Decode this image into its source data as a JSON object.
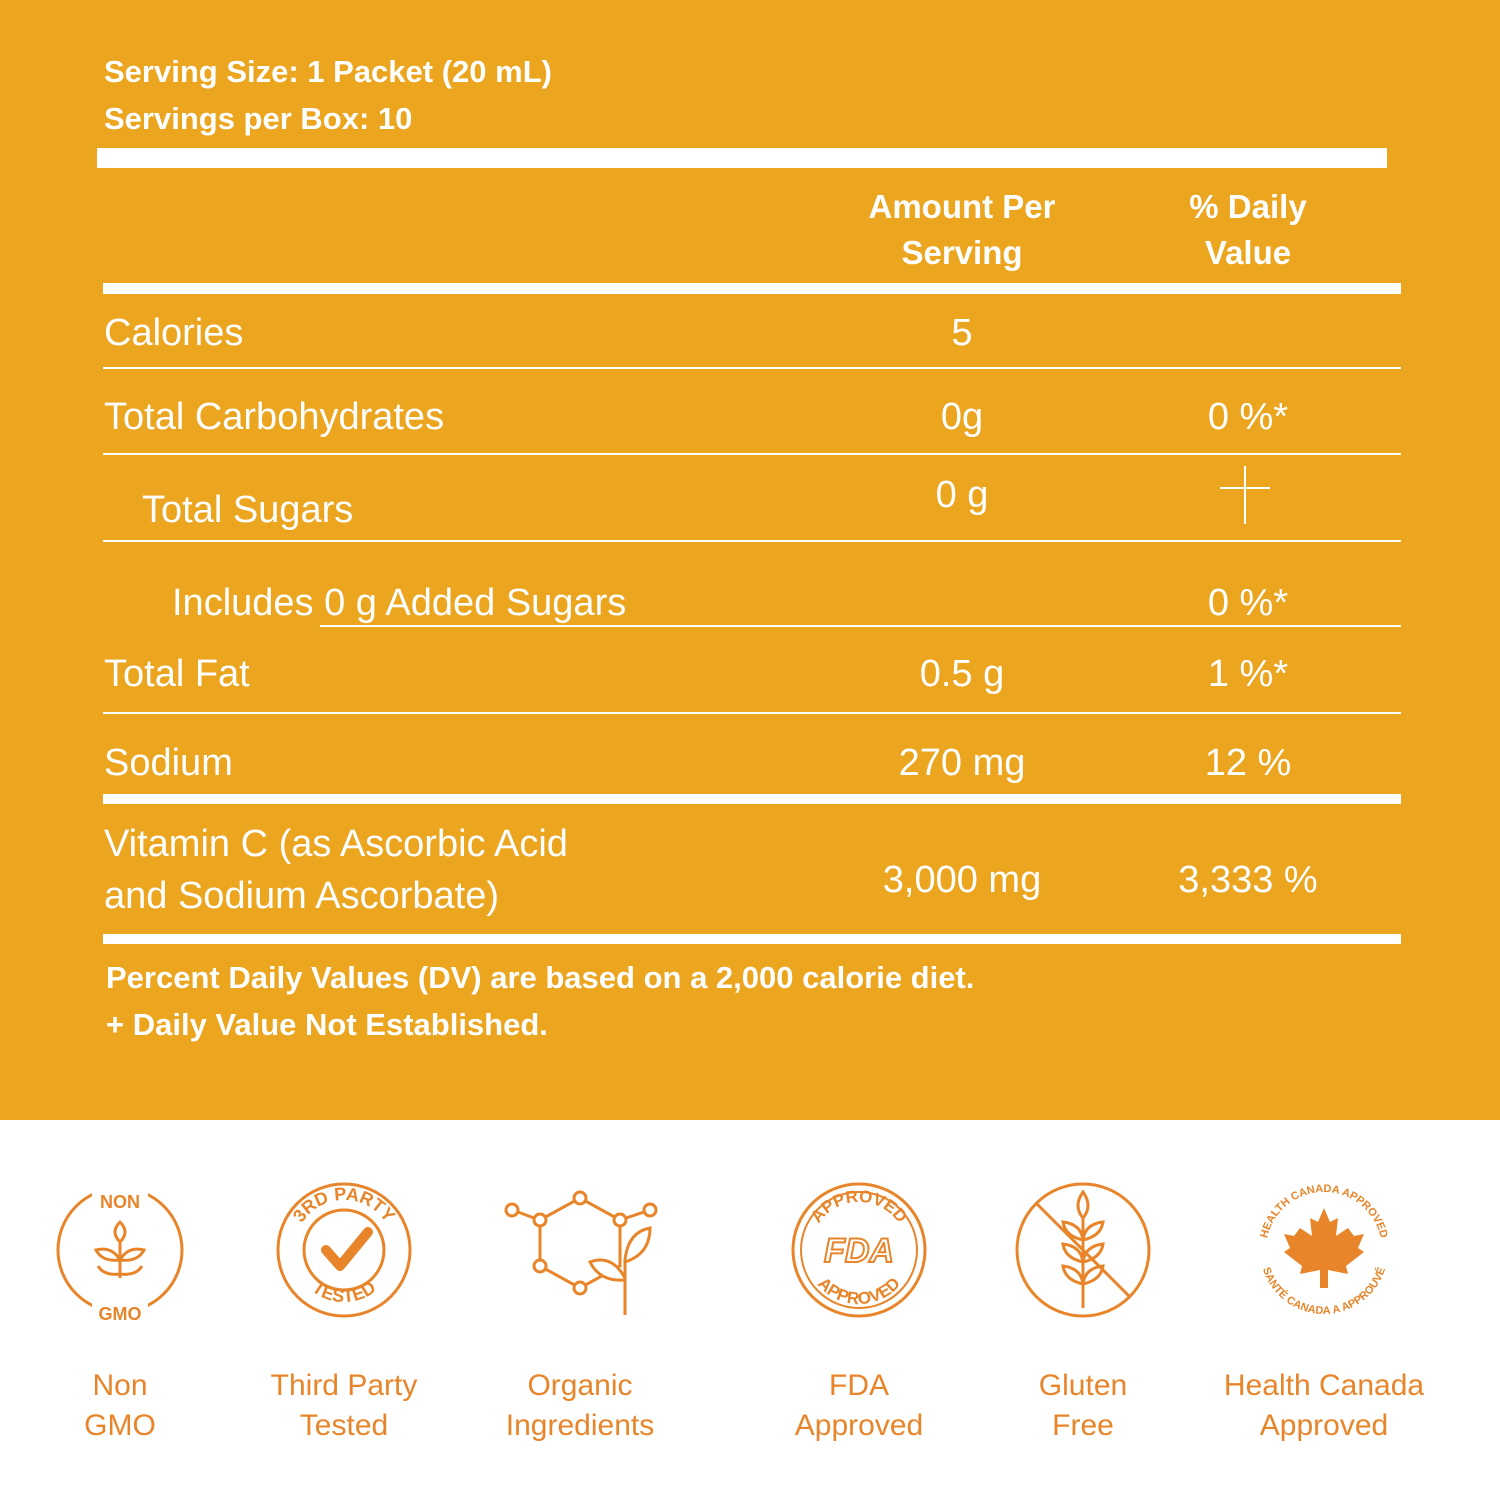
{
  "colors": {
    "panel": "#eba51f",
    "text": "#ffffff",
    "accent": "#e8852a"
  },
  "serving": {
    "size": "Serving Size: 1 Packet (20 mL)",
    "per_box": "Servings per Box: 10"
  },
  "columns": {
    "amount": "Amount Per\nServing",
    "daily": "% Daily\nValue"
  },
  "rows": [
    {
      "nutrient": "Calories",
      "amount": "5",
      "dv": ""
    },
    {
      "nutrient": "Total Carbohydrates",
      "amount": "0g",
      "dv": "0 %*"
    },
    {
      "nutrient": "Total Sugars",
      "amount": "0 g",
      "dv": ""
    },
    {
      "nutrient": "Includes 0 g Added Sugars",
      "amount": "",
      "dv": "0 %*"
    },
    {
      "nutrient": "Total Fat",
      "amount": "0.5 g",
      "dv": "1 %*"
    },
    {
      "nutrient": "Sodium",
      "amount": "270 mg",
      "dv": "12 %"
    },
    {
      "nutrient": "Vitamin C (as Ascorbic Acid\nand Sodium  Ascorbate)",
      "amount": "3,000 mg",
      "dv": "3,333 %"
    }
  ],
  "footnotes": {
    "line1": "Percent Daily Values (DV) are based on a 2,000 calorie diet.",
    "line2": "+ Daily Value Not Established."
  },
  "badges": [
    {
      "icon": "non-gmo-icon",
      "label": "Non\nGMO",
      "top_text": "NON",
      "bottom_text": "GMO"
    },
    {
      "icon": "third-party-tested-icon",
      "label": "Third Party\nTested",
      "top_text": "3RD PARTY",
      "bottom_text": "TESTED"
    },
    {
      "icon": "organic-ingredients-icon",
      "label": "Organic\nIngredients"
    },
    {
      "icon": "fda-approved-icon",
      "label": "FDA\nApproved",
      "top_text": "APPROVED",
      "center_text": "FDA",
      "bottom_text": "APPROVED"
    },
    {
      "icon": "gluten-free-icon",
      "label": "Gluten\nFree"
    },
    {
      "icon": "health-canada-icon",
      "label": "Health Canada\nApproved",
      "top_text": "HEALTH CANADA APPROVED",
      "bottom_text": "SANTÉ CANADA A APPROUVÉ"
    }
  ]
}
